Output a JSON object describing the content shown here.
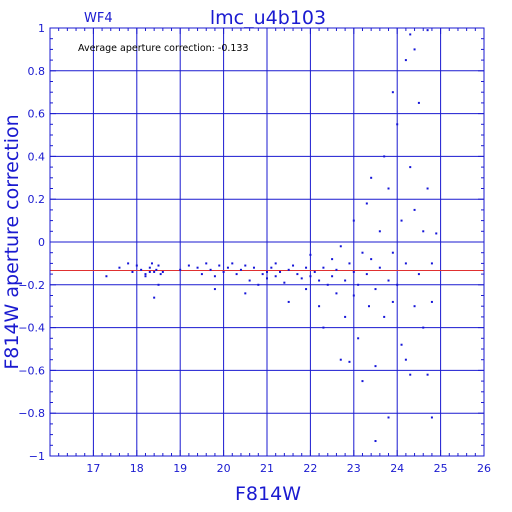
{
  "chart_data": {
    "type": "scatter",
    "title": "lmc_u4b103",
    "chip_label": "WF4",
    "annotation": "Average aperture correction: -0.133",
    "xlabel": "F814W",
    "ylabel": "F814W aperture correction",
    "xlim": [
      16,
      26
    ],
    "ylim": [
      -1,
      1
    ],
    "x_ticks": [
      17,
      18,
      19,
      20,
      21,
      22,
      23,
      24,
      25,
      26
    ],
    "y_ticks": [
      -1,
      -0.8,
      -0.6,
      -0.4,
      -0.2,
      0,
      0.2,
      0.4,
      0.6,
      0.8,
      1
    ],
    "x_tick_labels": [
      "17",
      "18",
      "19",
      "20",
      "21",
      "22",
      "23",
      "24",
      "25",
      "26"
    ],
    "y_tick_labels": [
      "−1",
      "−0.8",
      "−0.6",
      "−0.4",
      "−0.2",
      "0",
      "0.2",
      "0.4",
      "0.6",
      "0.8",
      "1"
    ],
    "grid": true,
    "reference_line": {
      "y": -0.133,
      "color": "#e03030"
    },
    "colors": {
      "axes": "#1a1ad0",
      "points": "#1414d8"
    },
    "points": [
      [
        17.3,
        -0.16
      ],
      [
        17.6,
        -0.12
      ],
      [
        17.8,
        -0.1
      ],
      [
        17.9,
        -0.14
      ],
      [
        18.0,
        -0.11
      ],
      [
        18.1,
        -0.13
      ],
      [
        18.2,
        -0.15
      ],
      [
        18.3,
        -0.12
      ],
      [
        18.35,
        -0.1
      ],
      [
        18.4,
        -0.14
      ],
      [
        18.45,
        -0.13
      ],
      [
        18.5,
        -0.11
      ],
      [
        18.55,
        -0.15
      ],
      [
        18.4,
        -0.26
      ],
      [
        18.2,
        -0.16
      ],
      [
        18.6,
        -0.14
      ],
      [
        18.5,
        -0.2
      ],
      [
        18.3,
        -0.14
      ],
      [
        19.0,
        -0.13
      ],
      [
        19.2,
        -0.11
      ],
      [
        19.4,
        -0.12
      ],
      [
        19.5,
        -0.15
      ],
      [
        19.6,
        -0.1
      ],
      [
        19.7,
        -0.13
      ],
      [
        19.8,
        -0.16
      ],
      [
        19.9,
        -0.11
      ],
      [
        19.8,
        -0.22
      ],
      [
        20.0,
        -0.14
      ],
      [
        20.1,
        -0.12
      ],
      [
        20.2,
        -0.1
      ],
      [
        20.3,
        -0.15
      ],
      [
        20.4,
        -0.13
      ],
      [
        20.5,
        -0.11
      ],
      [
        20.5,
        -0.24
      ],
      [
        20.6,
        -0.18
      ],
      [
        20.7,
        -0.12
      ],
      [
        20.8,
        -0.2
      ],
      [
        20.9,
        -0.15
      ],
      [
        21.0,
        -0.14
      ],
      [
        21.0,
        -0.17
      ],
      [
        21.1,
        -0.12
      ],
      [
        21.2,
        -0.1
      ],
      [
        21.2,
        -0.16
      ],
      [
        21.3,
        -0.14
      ],
      [
        21.4,
        -0.19
      ],
      [
        21.5,
        -0.13
      ],
      [
        21.5,
        -0.28
      ],
      [
        21.6,
        -0.11
      ],
      [
        21.7,
        -0.15
      ],
      [
        21.8,
        -0.17
      ],
      [
        21.9,
        -0.12
      ],
      [
        21.9,
        -0.22
      ],
      [
        22.0,
        -0.06
      ],
      [
        22.0,
        -0.16
      ],
      [
        22.1,
        -0.14
      ],
      [
        22.2,
        -0.18
      ],
      [
        22.2,
        -0.3
      ],
      [
        22.3,
        -0.12
      ],
      [
        22.3,
        -0.4
      ],
      [
        22.4,
        -0.2
      ],
      [
        22.5,
        -0.08
      ],
      [
        22.5,
        -0.16
      ],
      [
        22.6,
        -0.24
      ],
      [
        22.6,
        -0.13
      ],
      [
        22.7,
        -0.55
      ],
      [
        22.7,
        -0.02
      ],
      [
        22.8,
        -0.18
      ],
      [
        22.8,
        -0.35
      ],
      [
        22.9,
        -0.1
      ],
      [
        22.9,
        -0.56
      ],
      [
        23.0,
        -0.14
      ],
      [
        23.0,
        0.1
      ],
      [
        23.0,
        -0.25
      ],
      [
        23.1,
        -0.2
      ],
      [
        23.1,
        -0.45
      ],
      [
        23.2,
        -0.05
      ],
      [
        23.2,
        -0.65
      ],
      [
        23.3,
        -0.15
      ],
      [
        23.3,
        0.18
      ],
      [
        23.35,
        -0.3
      ],
      [
        23.4,
        -0.08
      ],
      [
        23.4,
        0.3
      ],
      [
        23.5,
        -0.22
      ],
      [
        23.5,
        -0.58
      ],
      [
        23.5,
        -0.93
      ],
      [
        23.6,
        0.05
      ],
      [
        23.6,
        -0.12
      ],
      [
        23.7,
        -0.35
      ],
      [
        23.7,
        0.4
      ],
      [
        23.8,
        0.25
      ],
      [
        23.8,
        -0.18
      ],
      [
        23.8,
        -0.82
      ],
      [
        23.9,
        0.7
      ],
      [
        23.9,
        -0.05
      ],
      [
        23.9,
        -0.28
      ],
      [
        24.0,
        0.55
      ],
      [
        24.0,
        -0.2
      ],
      [
        24.1,
        -0.48
      ],
      [
        24.1,
        0.1
      ],
      [
        24.2,
        0.85
      ],
      [
        24.2,
        -0.1
      ],
      [
        24.2,
        -0.55
      ],
      [
        24.3,
        0.35
      ],
      [
        24.3,
        -0.62
      ],
      [
        24.3,
        0.97
      ],
      [
        24.4,
        0.15
      ],
      [
        24.4,
        -0.3
      ],
      [
        24.4,
        0.9
      ],
      [
        24.5,
        -0.15
      ],
      [
        24.5,
        0.65
      ],
      [
        24.6,
        0.05
      ],
      [
        24.6,
        -0.4
      ],
      [
        24.7,
        -0.62
      ],
      [
        24.7,
        0.25
      ],
      [
        24.7,
        0.99
      ],
      [
        24.8,
        -0.1
      ],
      [
        24.8,
        -0.82
      ],
      [
        24.8,
        -0.28
      ],
      [
        24.9,
        0.04
      ]
    ]
  }
}
